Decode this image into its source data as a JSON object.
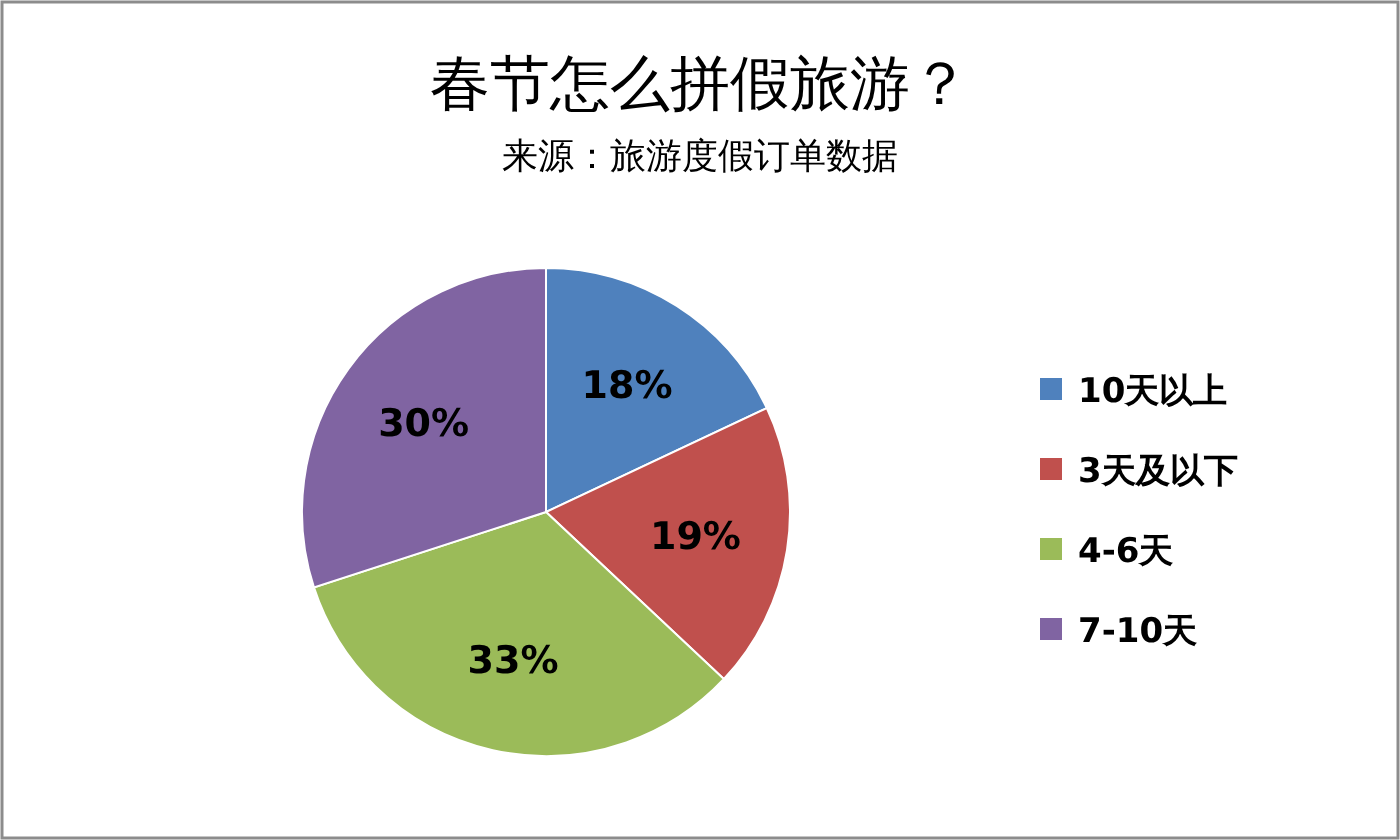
{
  "chart_data": {
    "type": "pie",
    "title": "春节怎么拼假旅游？",
    "subtitle": "来源：旅游度假订单数据",
    "categories": [
      "10天以上",
      "3天及以下",
      "4-6天",
      "7-10天"
    ],
    "values": [
      18,
      19,
      33,
      30
    ],
    "value_labels": [
      "18%",
      "19%",
      "33%",
      "30%"
    ],
    "colors": [
      "#4f81bd",
      "#c0504d",
      "#9bbb59",
      "#8064a2"
    ],
    "legend": "right"
  }
}
